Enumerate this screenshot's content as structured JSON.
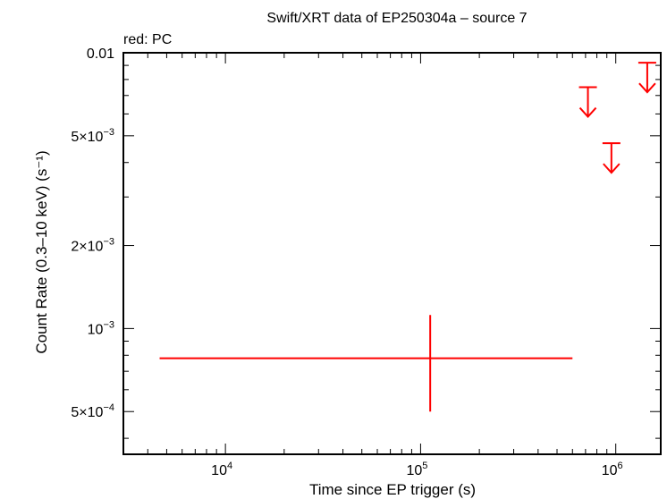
{
  "chart_data": {
    "type": "scatter",
    "title": "Swift/XRT data of EP250304a – source 7",
    "subtitle": "red: PC",
    "xlabel": "Time since EP trigger (s)",
    "ylabel": "Count Rate (0.3–10 keV) (s⁻¹)",
    "x_scale": "log",
    "y_scale": "log",
    "xlim": [
      3000,
      1700000
    ],
    "ylim": [
      0.00035,
      0.01
    ],
    "x_ticks": [
      {
        "value": 10000,
        "base": "10",
        "exp": "4"
      },
      {
        "value": 100000,
        "base": "10",
        "exp": "5"
      },
      {
        "value": 1000000,
        "base": "10",
        "exp": "6"
      }
    ],
    "y_ticks": [
      {
        "value": 0.0005,
        "mant": "5×10",
        "exp": "−4"
      },
      {
        "value": 0.001,
        "mant": "10",
        "exp": "−3"
      },
      {
        "value": 0.002,
        "mant": "2×10",
        "exp": "−3"
      },
      {
        "value": 0.005,
        "mant": "5×10",
        "exp": "−3"
      },
      {
        "value": 0.01,
        "mant": "0.01",
        "exp": ""
      }
    ],
    "series": [
      {
        "name": "PC",
        "color": "#ff0000",
        "points": [
          {
            "x": 112000,
            "xerr_low": 4600,
            "xerr_high": 600000,
            "y": 0.00078,
            "yerr_low": 0.0005,
            "yerr_high": 0.00112
          }
        ],
        "upper_limits": [
          {
            "x": 720000,
            "y": 0.0075
          },
          {
            "x": 950000,
            "y": 0.0047
          },
          {
            "x": 1450000,
            "y": 0.0092
          }
        ]
      }
    ]
  }
}
